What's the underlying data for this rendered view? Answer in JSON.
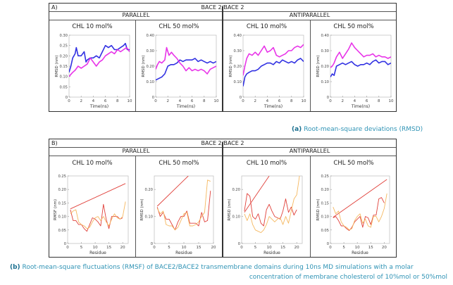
{
  "figureA": {
    "tag": "A)",
    "title": "BACE 2/BACE 2",
    "groups": [
      "PARALLEL",
      "ANTIPARALLEL"
    ],
    "caption_label": "(a)",
    "caption_text": "Root-mean-square deviations (RMSD)"
  },
  "figureB": {
    "tag": "B)",
    "title": "BACE 2/BACE 2",
    "groups": [
      "PARALLEL",
      "ANTIPARALLEL"
    ],
    "caption_label": "(b)",
    "caption_line1": "Root-mean-square fluctuations (RMSF) of BACE2/BACE2 transmembrane domains during 10ns MD simulations with a molar",
    "caption_line2": "concentration of membrane cholesterol of 10%mol or 50%mol"
  },
  "colors": {
    "blue": "#1a1adf",
    "magenta": "#e61ee6",
    "red": "#e0403a",
    "orange": "#f5b860",
    "caption": "#2f93b5"
  },
  "chart_data": [
    {
      "type": "line",
      "group": "PARALLEL",
      "title": "CHL 10 mol%",
      "xlabel": "Time(ns)",
      "ylabel": "RMSD (nm)",
      "xlim": [
        0,
        10
      ],
      "ylim": [
        0,
        0.3
      ],
      "xticks": [
        "0",
        "2",
        "4",
        "6",
        "8",
        "10"
      ],
      "yticks": [
        "0",
        "0.05",
        "0.10",
        "0.15",
        "0.20",
        "0.25",
        "0.30"
      ],
      "series": [
        {
          "name": "blue",
          "color": "#1a1adf",
          "x": [
            0,
            0.3,
            0.6,
            1,
            1.2,
            1.5,
            2,
            2.5,
            2.8,
            3,
            3.5,
            4,
            4.5,
            5,
            5.5,
            6,
            6.5,
            7,
            7.5,
            8,
            8.5,
            9,
            9.3,
            9.6,
            10
          ],
          "y": [
            0.12,
            0.15,
            0.19,
            0.21,
            0.24,
            0.2,
            0.2,
            0.22,
            0.17,
            0.18,
            0.19,
            0.19,
            0.2,
            0.19,
            0.22,
            0.25,
            0.24,
            0.25,
            0.23,
            0.23,
            0.24,
            0.25,
            0.26,
            0.23,
            0.23
          ]
        },
        {
          "name": "magenta",
          "color": "#e61ee6",
          "x": [
            0,
            0.3,
            0.6,
            1,
            1.5,
            2,
            2.5,
            3,
            3.5,
            4,
            4.5,
            5,
            5.5,
            6,
            6.5,
            7,
            7.5,
            8,
            8.5,
            9,
            9.5,
            10
          ],
          "y": [
            0.1,
            0.11,
            0.12,
            0.13,
            0.15,
            0.14,
            0.15,
            0.16,
            0.19,
            0.17,
            0.15,
            0.17,
            0.18,
            0.2,
            0.21,
            0.22,
            0.21,
            0.23,
            0.22,
            0.23,
            0.24,
            0.22
          ]
        }
      ]
    },
    {
      "type": "line",
      "group": "PARALLEL",
      "title": "CHL 50 mol%",
      "xlabel": "Time(ns)",
      "ylabel": "RMSD (nm)",
      "xlim": [
        0,
        10
      ],
      "ylim": [
        0,
        0.4
      ],
      "xticks": [
        "0",
        "2",
        "4",
        "6",
        "8",
        "10"
      ],
      "yticks": [
        "0",
        "0.10",
        "0.20",
        "0.30",
        "0.40"
      ],
      "series": [
        {
          "name": "blue",
          "color": "#1a1adf",
          "x": [
            0,
            0.5,
            1,
            1.5,
            2,
            2.5,
            3,
            3.5,
            4,
            4.5,
            5,
            5.5,
            6,
            6.5,
            7,
            7.5,
            8,
            8.5,
            9,
            9.5,
            10
          ],
          "y": [
            0.11,
            0.12,
            0.13,
            0.15,
            0.2,
            0.21,
            0.21,
            0.22,
            0.24,
            0.23,
            0.24,
            0.24,
            0.24,
            0.25,
            0.23,
            0.24,
            0.23,
            0.22,
            0.23,
            0.22,
            0.23
          ]
        },
        {
          "name": "magenta",
          "color": "#e61ee6",
          "x": [
            0,
            0.3,
            0.6,
            1,
            1.5,
            1.8,
            2.2,
            2.6,
            3,
            3.5,
            4,
            4.5,
            5,
            5.5,
            6,
            6.5,
            7,
            7.5,
            8,
            8.5,
            9,
            9.5,
            10
          ],
          "y": [
            0.18,
            0.21,
            0.23,
            0.22,
            0.24,
            0.32,
            0.27,
            0.29,
            0.27,
            0.25,
            0.22,
            0.2,
            0.17,
            0.19,
            0.17,
            0.18,
            0.17,
            0.18,
            0.17,
            0.15,
            0.18,
            0.19,
            0.2
          ]
        }
      ]
    },
    {
      "type": "line",
      "group": "ANTIPARALLEL",
      "title": "CHL 10 mol%",
      "xlabel": "Time(ns)",
      "ylabel": "RMSD (nm)",
      "xlim": [
        0,
        10
      ],
      "ylim": [
        0,
        0.4
      ],
      "xticks": [
        "0",
        "2",
        "4",
        "6",
        "8",
        "10"
      ],
      "yticks": [
        "0",
        "0.10",
        "0.20",
        "0.30",
        "0.40"
      ],
      "series": [
        {
          "name": "blue",
          "color": "#1a1adf",
          "x": [
            0,
            0.3,
            0.6,
            1,
            1.5,
            2,
            2.5,
            3,
            3.5,
            4,
            4.5,
            5,
            5.5,
            6,
            6.5,
            7,
            7.5,
            8,
            8.5,
            9,
            9.5,
            10
          ],
          "y": [
            0.07,
            0.13,
            0.15,
            0.16,
            0.17,
            0.17,
            0.18,
            0.2,
            0.21,
            0.22,
            0.22,
            0.21,
            0.23,
            0.22,
            0.24,
            0.23,
            0.22,
            0.23,
            0.22,
            0.24,
            0.25,
            0.23
          ]
        },
        {
          "name": "magenta",
          "color": "#e61ee6",
          "x": [
            0,
            0.3,
            0.6,
            1,
            1.5,
            2,
            2.5,
            3,
            3.5,
            4,
            4.5,
            5,
            5.5,
            6,
            6.5,
            7,
            7.5,
            8,
            8.5,
            9,
            9.5,
            10
          ],
          "y": [
            0.14,
            0.2,
            0.25,
            0.28,
            0.27,
            0.29,
            0.27,
            0.3,
            0.33,
            0.29,
            0.3,
            0.32,
            0.27,
            0.26,
            0.27,
            0.28,
            0.3,
            0.3,
            0.32,
            0.33,
            0.32,
            0.34
          ]
        }
      ]
    },
    {
      "type": "line",
      "group": "ANTIPARALLEL",
      "title": "CHL 50 mol%",
      "xlabel": "Time(ns)",
      "ylabel": "RMSD (nm)",
      "xlim": [
        0,
        10
      ],
      "ylim": [
        0,
        0.4
      ],
      "xticks": [
        "0",
        "2",
        "4",
        "6",
        "8",
        "10"
      ],
      "yticks": [
        "0",
        "0.10",
        "0.20",
        "0.30",
        "0.40"
      ],
      "series": [
        {
          "name": "blue",
          "color": "#1a1adf",
          "x": [
            0,
            0.3,
            0.6,
            1,
            1.5,
            2,
            2.5,
            3,
            3.5,
            4,
            4.5,
            5,
            5.5,
            6,
            6.5,
            7,
            7.5,
            8,
            8.5,
            9,
            9.5,
            10
          ],
          "y": [
            0.13,
            0.15,
            0.14,
            0.2,
            0.21,
            0.22,
            0.21,
            0.22,
            0.23,
            0.21,
            0.2,
            0.21,
            0.21,
            0.22,
            0.21,
            0.23,
            0.24,
            0.22,
            0.23,
            0.23,
            0.21,
            0.22
          ]
        },
        {
          "name": "magenta",
          "color": "#e61ee6",
          "x": [
            0,
            0.3,
            0.6,
            1,
            1.5,
            2,
            2.5,
            3,
            3.5,
            4,
            4.5,
            5,
            5.5,
            6,
            6.5,
            7,
            7.5,
            8,
            8.5,
            9,
            9.5,
            10
          ],
          "y": [
            0.19,
            0.2,
            0.22,
            0.26,
            0.29,
            0.25,
            0.28,
            0.31,
            0.35,
            0.32,
            0.3,
            0.28,
            0.26,
            0.27,
            0.27,
            0.28,
            0.26,
            0.27,
            0.26,
            0.26,
            0.25,
            0.26
          ]
        }
      ]
    },
    {
      "type": "line",
      "group": "PARALLEL",
      "title": "CHL 10 mol%",
      "xlabel": "Residue",
      "ylabel": "RMSF (nm)",
      "xlim": [
        0,
        22
      ],
      "ylim": [
        0,
        0.25
      ],
      "xticks": [
        "0",
        "5",
        "10",
        "15",
        "20"
      ],
      "yticks": [
        "0",
        "0.05",
        "0.10",
        "0.15",
        "0.20",
        "0.25"
      ],
      "series": [
        {
          "name": "trend",
          "color": "#e0403a",
          "x": [
            1,
            21
          ],
          "y": [
            0.128,
            0.222
          ]
        },
        {
          "name": "red",
          "color": "#e0403a",
          "x": [
            1,
            2,
            3,
            4,
            5,
            6,
            7,
            8,
            9,
            10,
            11,
            12,
            13,
            14,
            15,
            16,
            17,
            18,
            19,
            20
          ],
          "y": [
            0.125,
            0.085,
            0.085,
            0.07,
            0.07,
            0.055,
            0.045,
            0.07,
            0.095,
            0.09,
            0.08,
            0.065,
            0.145,
            0.09,
            0.055,
            0.1,
            0.1,
            0.1,
            0.09,
            0.095
          ]
        },
        {
          "name": "orange",
          "color": "#f5b860",
          "x": [
            1,
            2,
            3,
            4,
            5,
            6,
            7,
            8,
            9,
            10,
            11,
            12,
            13,
            14,
            15,
            16,
            17,
            18,
            19,
            20,
            21
          ],
          "y": [
            0.11,
            0.12,
            0.125,
            0.08,
            0.07,
            0.065,
            0.055,
            0.06,
            0.08,
            0.095,
            0.1,
            0.085,
            0.1,
            0.08,
            0.065,
            0.09,
            0.11,
            0.095,
            0.09,
            0.1,
            0.155
          ]
        }
      ]
    },
    {
      "type": "line",
      "group": "PARALLEL",
      "title": "CHL 50 mol%",
      "xlabel": "Residue",
      "ylabel": "RMSD (nm)",
      "xlim": [
        0,
        20
      ],
      "ylim": [
        0,
        0.25
      ],
      "xticks": [
        "0",
        "5",
        "10",
        "15",
        "20"
      ],
      "yticks": [
        "0",
        "0.10",
        "0.20"
      ],
      "series": [
        {
          "name": "trend",
          "color": "#e0403a",
          "x": [
            1,
            11.5
          ],
          "y": [
            0.138,
            0.25
          ]
        },
        {
          "name": "red",
          "color": "#e0403a",
          "x": [
            1,
            2,
            3,
            4,
            5,
            6,
            7,
            8,
            9,
            10,
            11,
            12,
            13,
            14,
            15,
            16,
            17,
            18,
            19
          ],
          "y": [
            0.135,
            0.1,
            0.115,
            0.09,
            0.09,
            0.07,
            0.05,
            0.08,
            0.1,
            0.1,
            0.12,
            0.075,
            0.075,
            0.075,
            0.065,
            0.115,
            0.08,
            0.085,
            0.195
          ]
        },
        {
          "name": "orange",
          "color": "#f5b860",
          "x": [
            1,
            2,
            3,
            4,
            5,
            6,
            7,
            8,
            9,
            10,
            11,
            12,
            13,
            14,
            15,
            16,
            17,
            18,
            19
          ],
          "y": [
            0.13,
            0.11,
            0.12,
            0.07,
            0.065,
            0.065,
            0.05,
            0.06,
            0.085,
            0.11,
            0.115,
            0.065,
            0.065,
            0.07,
            0.08,
            0.1,
            0.115,
            0.235,
            0.23
          ]
        }
      ]
    },
    {
      "type": "line",
      "group": "ANTIPARALLEL",
      "title": "CHL 10 mol%",
      "xlabel": "Residue",
      "ylabel": "RMSD (nm)",
      "xlim": [
        0,
        22
      ],
      "ylim": [
        0,
        0.25
      ],
      "xticks": [
        "0",
        "5",
        "10",
        "15",
        "20"
      ],
      "yticks": [
        "0",
        "0.10",
        "0.20"
      ],
      "series": [
        {
          "name": "trend",
          "color": "#e0403a",
          "x": [
            1,
            10
          ],
          "y": [
            0.115,
            0.25
          ]
        },
        {
          "name": "red",
          "color": "#e0403a",
          "x": [
            1,
            2,
            3,
            4,
            5,
            6,
            7,
            8,
            9,
            10,
            11,
            12,
            13,
            14,
            15,
            16,
            17,
            18,
            19,
            20
          ],
          "y": [
            0.12,
            0.185,
            0.175,
            0.1,
            0.09,
            0.11,
            0.075,
            0.065,
            0.125,
            0.145,
            0.12,
            0.1,
            0.095,
            0.09,
            0.12,
            0.165,
            0.115,
            0.135,
            0.105,
            0.125
          ]
        },
        {
          "name": "orange",
          "color": "#f5b860",
          "x": [
            1,
            2,
            3,
            4,
            5,
            6,
            7,
            8,
            9,
            10,
            11,
            12,
            13,
            14,
            15,
            16,
            17,
            18,
            19,
            20,
            21
          ],
          "y": [
            0.11,
            0.085,
            0.11,
            0.07,
            0.05,
            0.045,
            0.04,
            0.05,
            0.07,
            0.1,
            0.09,
            0.08,
            0.09,
            0.095,
            0.07,
            0.1,
            0.075,
            0.12,
            0.165,
            0.18,
            0.25
          ]
        }
      ]
    },
    {
      "type": "line",
      "group": "ANTIPARALLEL",
      "title": "CHL 50 mol%",
      "xlabel": "Residue",
      "ylabel": "RMSD (nm)",
      "xlim": [
        0,
        22
      ],
      "ylim": [
        0,
        0.25
      ],
      "xticks": [
        "0",
        "5",
        "10",
        "15",
        "20"
      ],
      "yticks": [
        "0",
        "0.05",
        "0.10",
        "0.15",
        "0.20",
        "0.25"
      ],
      "series": [
        {
          "name": "trend",
          "color": "#e0403a",
          "x": [
            1,
            21
          ],
          "y": [
            0.097,
            0.237
          ]
        },
        {
          "name": "red",
          "color": "#e0403a",
          "x": [
            1,
            2,
            3,
            4,
            5,
            6,
            7,
            8,
            9,
            10,
            11,
            12,
            13,
            14,
            15,
            16,
            17,
            18,
            19,
            20
          ],
          "y": [
            0.095,
            0.1,
            0.085,
            0.065,
            0.065,
            0.055,
            0.048,
            0.06,
            0.08,
            0.09,
            0.1,
            0.06,
            0.1,
            0.095,
            0.07,
            0.105,
            0.105,
            0.165,
            0.17,
            0.15
          ]
        },
        {
          "name": "orange",
          "color": "#f5b860",
          "x": [
            1,
            2,
            3,
            4,
            5,
            6,
            7,
            8,
            9,
            10,
            11,
            12,
            13,
            14,
            15,
            16,
            17,
            18,
            19,
            20,
            21
          ],
          "y": [
            0.135,
            0.11,
            0.12,
            0.08,
            0.065,
            0.06,
            0.05,
            0.055,
            0.085,
            0.1,
            0.11,
            0.075,
            0.09,
            0.065,
            0.06,
            0.1,
            0.1,
            0.08,
            0.1,
            0.13,
            0.185
          ]
        }
      ]
    }
  ]
}
